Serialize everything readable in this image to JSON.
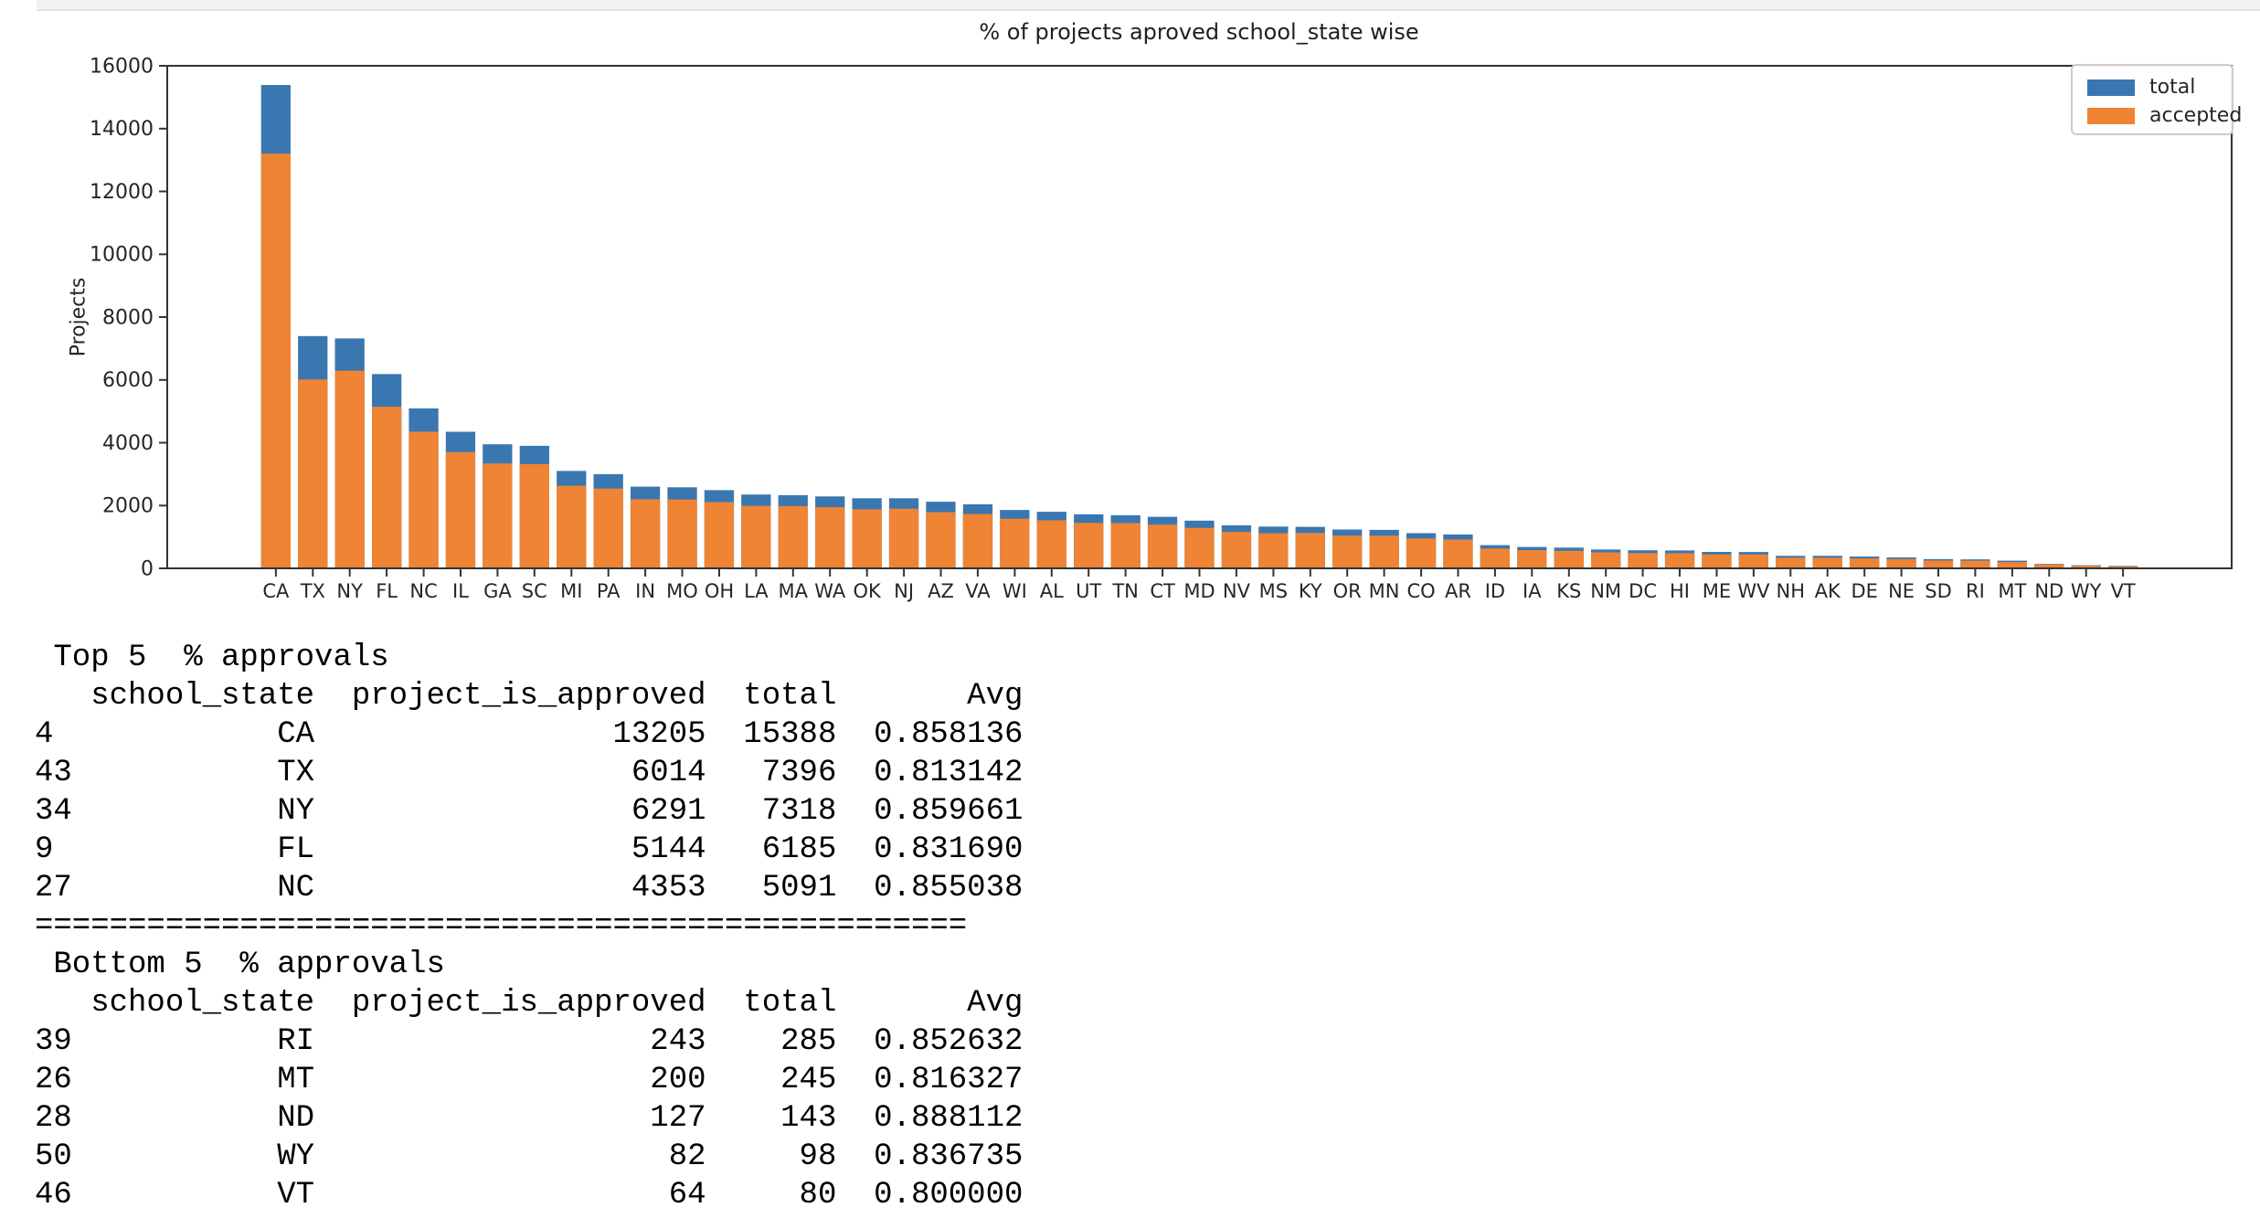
{
  "notebook": {
    "cell_strip_color": "#f2f2f2"
  },
  "chart_data": {
    "type": "bar",
    "bar_mode": "overlay",
    "title": "% of projects aproved school_state wise",
    "xlabel": "",
    "ylabel": "Projects",
    "ylim": [
      0,
      16000
    ],
    "yticks": [
      0,
      2000,
      4000,
      6000,
      8000,
      10000,
      12000,
      14000,
      16000
    ],
    "grid": false,
    "legend_position": "upper right",
    "categories": [
      "CA",
      "TX",
      "NY",
      "FL",
      "NC",
      "IL",
      "GA",
      "SC",
      "MI",
      "PA",
      "IN",
      "MO",
      "OH",
      "LA",
      "MA",
      "WA",
      "OK",
      "NJ",
      "AZ",
      "VA",
      "WI",
      "AL",
      "UT",
      "TN",
      "CT",
      "MD",
      "NV",
      "MS",
      "KY",
      "OR",
      "MN",
      "CO",
      "AR",
      "ID",
      "IA",
      "KS",
      "NM",
      "DC",
      "HI",
      "ME",
      "WV",
      "NH",
      "AK",
      "DE",
      "NE",
      "SD",
      "RI",
      "MT",
      "ND",
      "WY",
      "VT"
    ],
    "series": [
      {
        "name": "total",
        "color": "#3a77b0",
        "values": [
          15388,
          7396,
          7318,
          6185,
          5091,
          4350,
          3950,
          3900,
          3100,
          3000,
          2600,
          2580,
          2490,
          2350,
          2330,
          2290,
          2230,
          2230,
          2120,
          2040,
          1860,
          1800,
          1720,
          1690,
          1640,
          1520,
          1370,
          1330,
          1320,
          1235,
          1225,
          1120,
          1080,
          740,
          680,
          660,
          600,
          575,
          570,
          525,
          520,
          400,
          398,
          375,
          345,
          295,
          285,
          245,
          143,
          98,
          80
        ]
      },
      {
        "name": "accepted",
        "color": "#ee8434",
        "values": [
          13205,
          6014,
          6291,
          5144,
          4353,
          3700,
          3340,
          3320,
          2630,
          2540,
          2200,
          2190,
          2110,
          1990,
          1980,
          1950,
          1880,
          1900,
          1790,
          1730,
          1580,
          1530,
          1450,
          1440,
          1390,
          1290,
          1160,
          1120,
          1125,
          1045,
          1040,
          950,
          915,
          630,
          578,
          560,
          508,
          487,
          482,
          446,
          442,
          340,
          337,
          318,
          293,
          250,
          243,
          200,
          127,
          82,
          64
        ]
      }
    ]
  },
  "output": {
    "top_table": {
      "heading": " Top 5  % approvals",
      "columns": [
        "school_state",
        "project_is_approved",
        "total",
        "Avg"
      ],
      "rows": [
        [
          "4",
          "CA",
          "13205",
          "15388",
          "0.858136"
        ],
        [
          "43",
          "TX",
          "6014",
          "7396",
          "0.813142"
        ],
        [
          "34",
          "NY",
          "6291",
          "7318",
          "0.859661"
        ],
        [
          "9",
          "FL",
          "5144",
          "6185",
          "0.831690"
        ],
        [
          "27",
          "NC",
          "4353",
          "5091",
          "0.855038"
        ]
      ]
    },
    "separator": "==================================================",
    "bottom_table": {
      "heading": " Bottom 5  % approvals",
      "columns": [
        "school_state",
        "project_is_approved",
        "total",
        "Avg"
      ],
      "rows": [
        [
          "39",
          "RI",
          "243",
          "285",
          "0.852632"
        ],
        [
          "26",
          "MT",
          "200",
          "245",
          "0.816327"
        ],
        [
          "28",
          "ND",
          "127",
          "143",
          "0.888112"
        ],
        [
          "50",
          "WY",
          "82",
          "98",
          "0.836735"
        ],
        [
          "46",
          "VT",
          "64",
          "80",
          "0.800000"
        ]
      ]
    }
  }
}
